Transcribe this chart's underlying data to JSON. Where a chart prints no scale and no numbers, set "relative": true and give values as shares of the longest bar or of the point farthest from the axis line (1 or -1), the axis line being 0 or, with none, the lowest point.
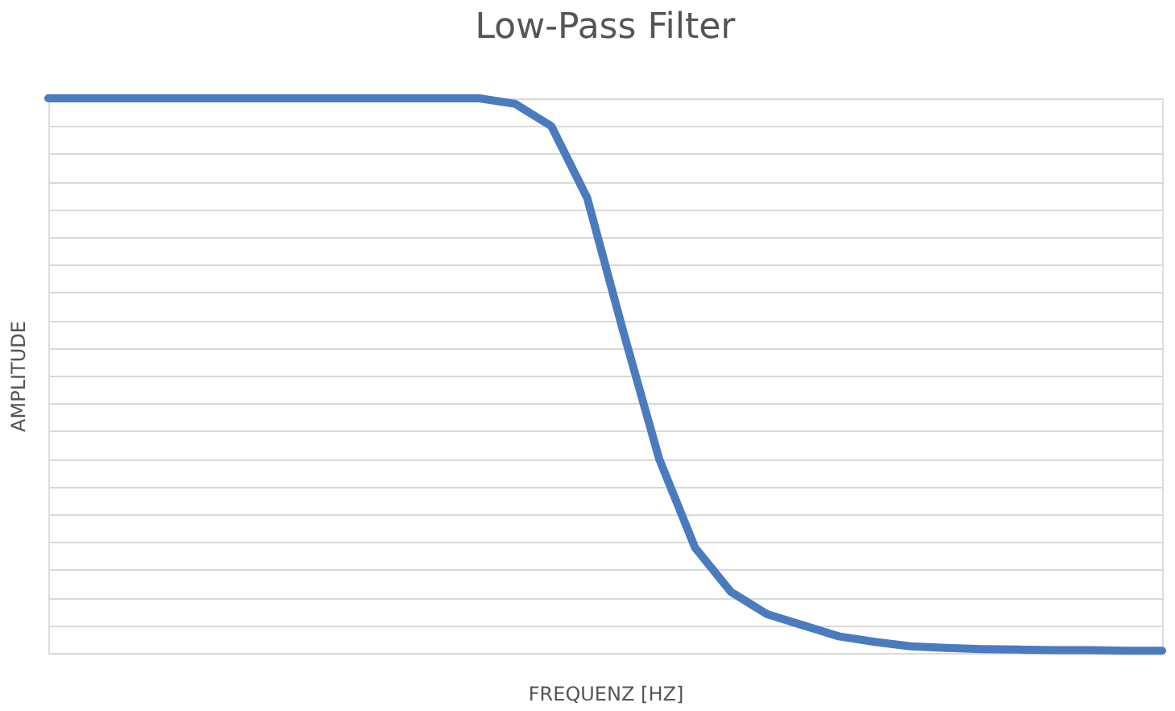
{
  "chart_data": {
    "type": "line",
    "title": "Low-Pass Filter",
    "xlabel": "FREQUENZ [HZ]",
    "ylabel": "AMPLITUDE",
    "relative": true,
    "grid": "y",
    "tick_labels": false,
    "legend": false,
    "marker": "none",
    "line_style": "solid",
    "categories": [
      null,
      null,
      null,
      null,
      null,
      null,
      null,
      null,
      null,
      null,
      null,
      null,
      null,
      null,
      null,
      null,
      null,
      null,
      null,
      null,
      null,
      null,
      null,
      null,
      null,
      null,
      null,
      null,
      null,
      null,
      null,
      null
    ],
    "series": [
      {
        "color": "#4a7bbf",
        "values": [
          1,
          1,
          1,
          1,
          1,
          1,
          1,
          1,
          1,
          1,
          1,
          1,
          1,
          0.99,
          0.95,
          0.82,
          0.58,
          0.35,
          0.19,
          0.11,
          0.07,
          0.05,
          0.03,
          0.02,
          0.012,
          0.009,
          0.007,
          0.006,
          0.005,
          0.005,
          0.004,
          0.004
        ]
      }
    ]
  }
}
